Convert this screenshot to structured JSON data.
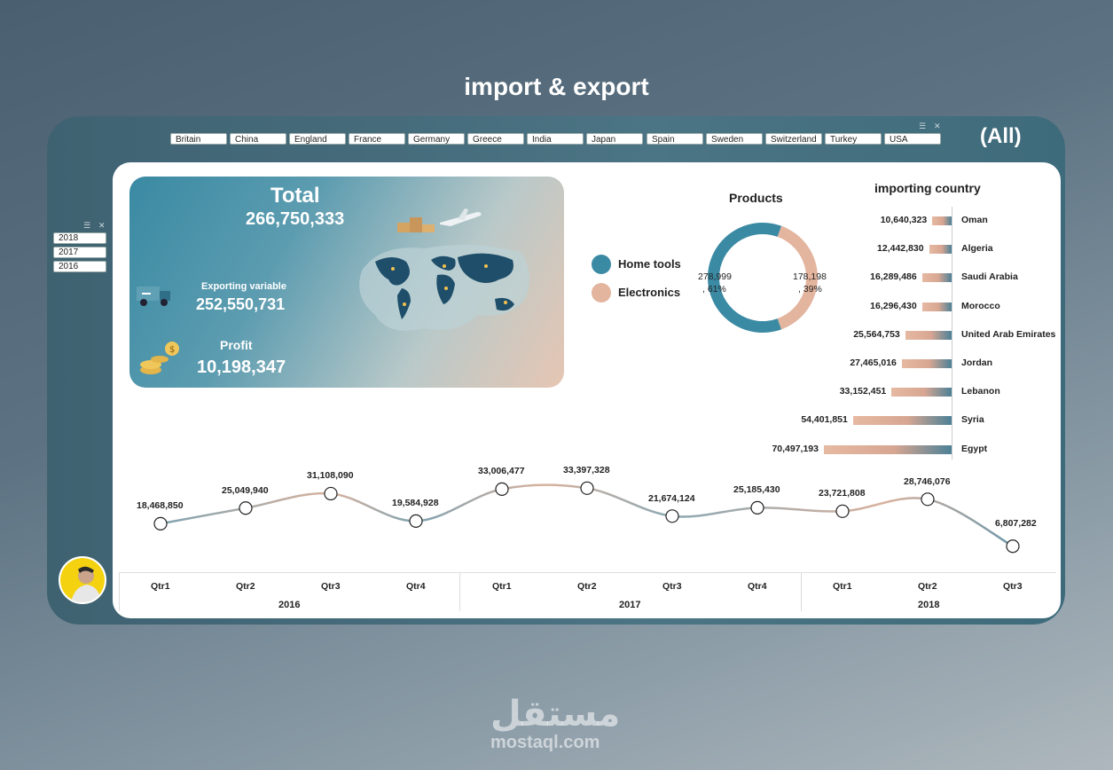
{
  "title": "import & export",
  "slicer": {
    "selected": "(All)",
    "countries": [
      "Britain",
      "China",
      "England",
      "France",
      "Germany",
      "Greece",
      "India",
      "Japan",
      "Spain",
      "Sweden",
      "Switzerland",
      "Turkey",
      "USA"
    ],
    "years": [
      "2018",
      "2017",
      "2016"
    ]
  },
  "kpis": {
    "total_label": "Total",
    "total_value": "266,750,333",
    "export_label": "Exporting variable",
    "export_value": "252,550,731",
    "profit_label": "Profit",
    "profit_value": "10,198,347"
  },
  "colors": {
    "teal": "#3b8aa4",
    "peach": "#e3b49e",
    "panel": "#446b7a"
  },
  "chart_data": [
    {
      "type": "pie",
      "title": "Products",
      "categories": [
        "Home tools",
        "Electronics"
      ],
      "values": [
        278999,
        178198
      ],
      "percent_labels": [
        "278,999",
        "178,198"
      ],
      "percent_sub": [
        ", 61%",
        ", 39%"
      ],
      "colors": [
        "#3b8aa4",
        "#e3b49e"
      ]
    },
    {
      "type": "bar",
      "title": "importing country",
      "categories": [
        "Oman",
        "Algeria",
        "Saudi Arabia",
        "Morocco",
        "United Arab Emirates",
        "Jordan",
        "Lebanon",
        "Syria",
        "Egypt"
      ],
      "values": [
        10640323,
        12442830,
        16289486,
        16296430,
        25564753,
        27465016,
        33152451,
        54401851,
        70497193
      ],
      "value_labels": [
        "10,640,323",
        "12,442,830",
        "16,289,486",
        "16,296,430",
        "25,564,753",
        "27,465,016",
        "33,152,451",
        "54,401,851",
        "70,497,193"
      ]
    },
    {
      "type": "line",
      "title": "",
      "categories": [
        "Qtr1",
        "Qtr2",
        "Qtr3",
        "Qtr4",
        "Qtr1",
        "Qtr2",
        "Qtr3",
        "Qtr4",
        "Qtr1",
        "Qtr2",
        "Qtr3"
      ],
      "years": [
        "2016",
        "2017",
        "2018"
      ],
      "values": [
        18468850,
        25049940,
        31108090,
        19584928,
        33006477,
        33397328,
        21674124,
        25185430,
        23721808,
        28746076,
        6807282
      ],
      "value_labels": [
        "18,468,850",
        "25,049,940",
        "31,108,090",
        "19,584,928",
        "33,006,477",
        "33,397,328",
        "21,674,124",
        "25,185,430",
        "23,721,808",
        "28,746,076",
        "6,807,282"
      ]
    }
  ],
  "watermark": {
    "arabic": "مستقل",
    "latin": "mostaql.com"
  }
}
